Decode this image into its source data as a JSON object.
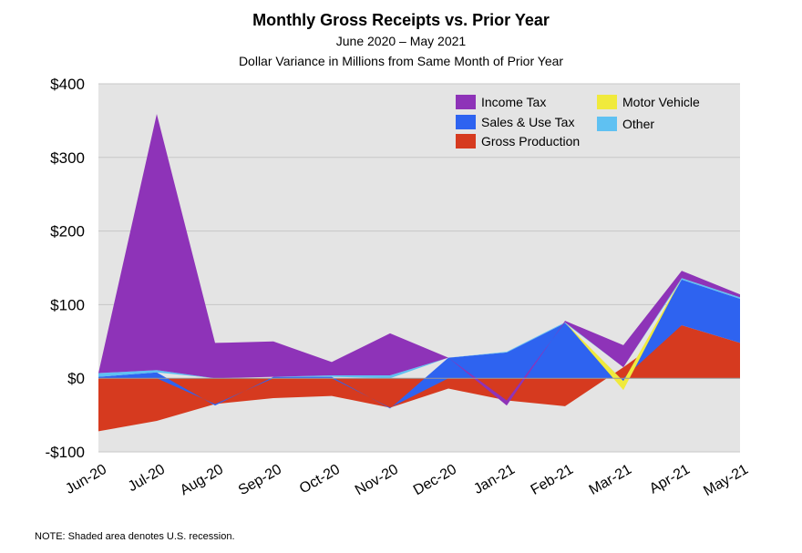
{
  "chart_data": {
    "type": "area",
    "title": "Monthly Gross Receipts vs. Prior Year",
    "subtitle_lines": [
      "June 2020 – May 2021",
      "Dollar Variance in Millions from Same Month of Prior Year"
    ],
    "note": "NOTE: Shaded area denotes U.S. recession.",
    "categories": [
      "Jun-20",
      "Jul-20",
      "Aug-20",
      "Sep-20",
      "Oct-20",
      "Nov-20",
      "Dec-20",
      "Jan-21",
      "Feb-21",
      "Mar-21",
      "Apr-21",
      "May-21"
    ],
    "ylim": [
      -100,
      400
    ],
    "yticks": [
      -100,
      0,
      100,
      200,
      300,
      400
    ],
    "ytick_labels": [
      "-$100",
      "$0",
      "$100",
      "$200",
      "$300",
      "$400"
    ],
    "recession_shaded": true,
    "legend_position": "top-right",
    "series": [
      {
        "name": "Gross Production",
        "color": "#d63a1f",
        "values": [
          -72,
          -58,
          -35,
          -27,
          -24,
          -40,
          -14,
          -30,
          -38,
          15,
          72,
          48
        ]
      },
      {
        "name": "Sales & Use Tax",
        "color": "#2e63f0",
        "values": [
          2,
          8,
          -2,
          2,
          2,
          -1,
          28,
          35,
          75,
          -4,
          62,
          60
        ]
      },
      {
        "name": "Other",
        "color": "#5fc1f2",
        "values": [
          5,
          3,
          0,
          0,
          2,
          4,
          0,
          1,
          1,
          0,
          2,
          2
        ]
      },
      {
        "name": "Motor Vehicle",
        "color": "#f0ea3c",
        "values": [
          0,
          0,
          0,
          0,
          0,
          0,
          0,
          0,
          0,
          -12,
          0,
          0
        ]
      },
      {
        "name": "Income Tax",
        "color": "#8e33b8",
        "values": [
          0,
          348,
          48,
          48,
          18,
          57,
          0,
          -7,
          2,
          30,
          10,
          4
        ]
      }
    ],
    "legend_order": [
      "Income Tax",
      "Motor Vehicle",
      "Sales & Use Tax",
      "Other",
      "Gross Production"
    ]
  }
}
